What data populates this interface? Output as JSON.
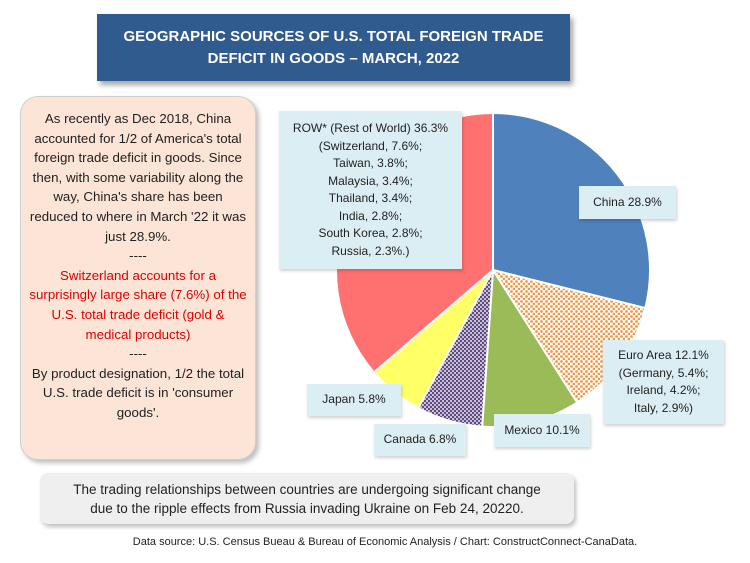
{
  "title": {
    "line1": "GEOGRAPHIC SOURCES OF U.S. TOTAL FOREIGN TRADE",
    "line2": "DEFICIT IN GOODS – MARCH, 2022"
  },
  "sidebar": {
    "para1": "As recently as Dec 2018, China accounted for 1/2 of America's total foreign trade deficit in goods. Since then, with some variability along the way, China's share has been reduced to where in March '22 it was just 28.9%.",
    "sep1": "----",
    "para2": "Switzerland accounts for a surprisingly large share (7.6%) of the U.S. total trade deficit (gold & medical products)",
    "sep2": "----",
    "para3": "By product designation, 1/2 the total U.S. trade deficit is in 'consumer goods'."
  },
  "note": {
    "line1": "The trading  relationships between countries are undergoing significant change",
    "line2": "due to the ripple effects from Russia invading Ukraine on Feb 24, 20220."
  },
  "source": "Data source: U.S. Census Bueau & Bureau of Economic Analysis / Chart: ConstructConnect-CanaData.",
  "chart_data": {
    "type": "pie",
    "title": "GEOGRAPHIC SOURCES OF U.S. TOTAL FOREIGN TRADE DEFICIT IN GOODS – MARCH, 2022",
    "unit": "%",
    "slices": [
      {
        "name": "China",
        "value": 28.9,
        "color": "#4f81bd",
        "pattern": "solid"
      },
      {
        "name": "Euro Area",
        "value": 12.1,
        "color": "#f79646",
        "pattern": "dots"
      },
      {
        "name": "Mexico",
        "value": 10.1,
        "color": "#9bbb59",
        "pattern": "solid"
      },
      {
        "name": "Canada",
        "value": 6.8,
        "color": "#8064a2",
        "pattern": "checker"
      },
      {
        "name": "Japan",
        "value": 5.8,
        "color": "#ffff66",
        "pattern": "solid"
      },
      {
        "name": "ROW* (Rest of World)",
        "value": 36.3,
        "color": "#ff7171",
        "pattern": "solid"
      }
    ],
    "labels": {
      "china": [
        "China 28.9%"
      ],
      "euro": [
        "Euro Area 12.1%",
        "(Germany, 5.4%;",
        "Ireland, 4.2%;",
        "Italy, 2.9%)"
      ],
      "mexico": [
        "Mexico 10.1%"
      ],
      "canada": [
        "Canada 6.8%"
      ],
      "japan": [
        "Japan 5.8%"
      ],
      "row": [
        "ROW* (Rest of World) 36.3%",
        "(Switzerland, 7.6%;",
        "Taiwan, 3.8%;",
        "Malaysia, 3.4%;",
        "Thailand, 3.4%;",
        "India, 2.8%;",
        "South Korea, 2.8%;",
        "Russia, 2.3%.)"
      ]
    }
  }
}
